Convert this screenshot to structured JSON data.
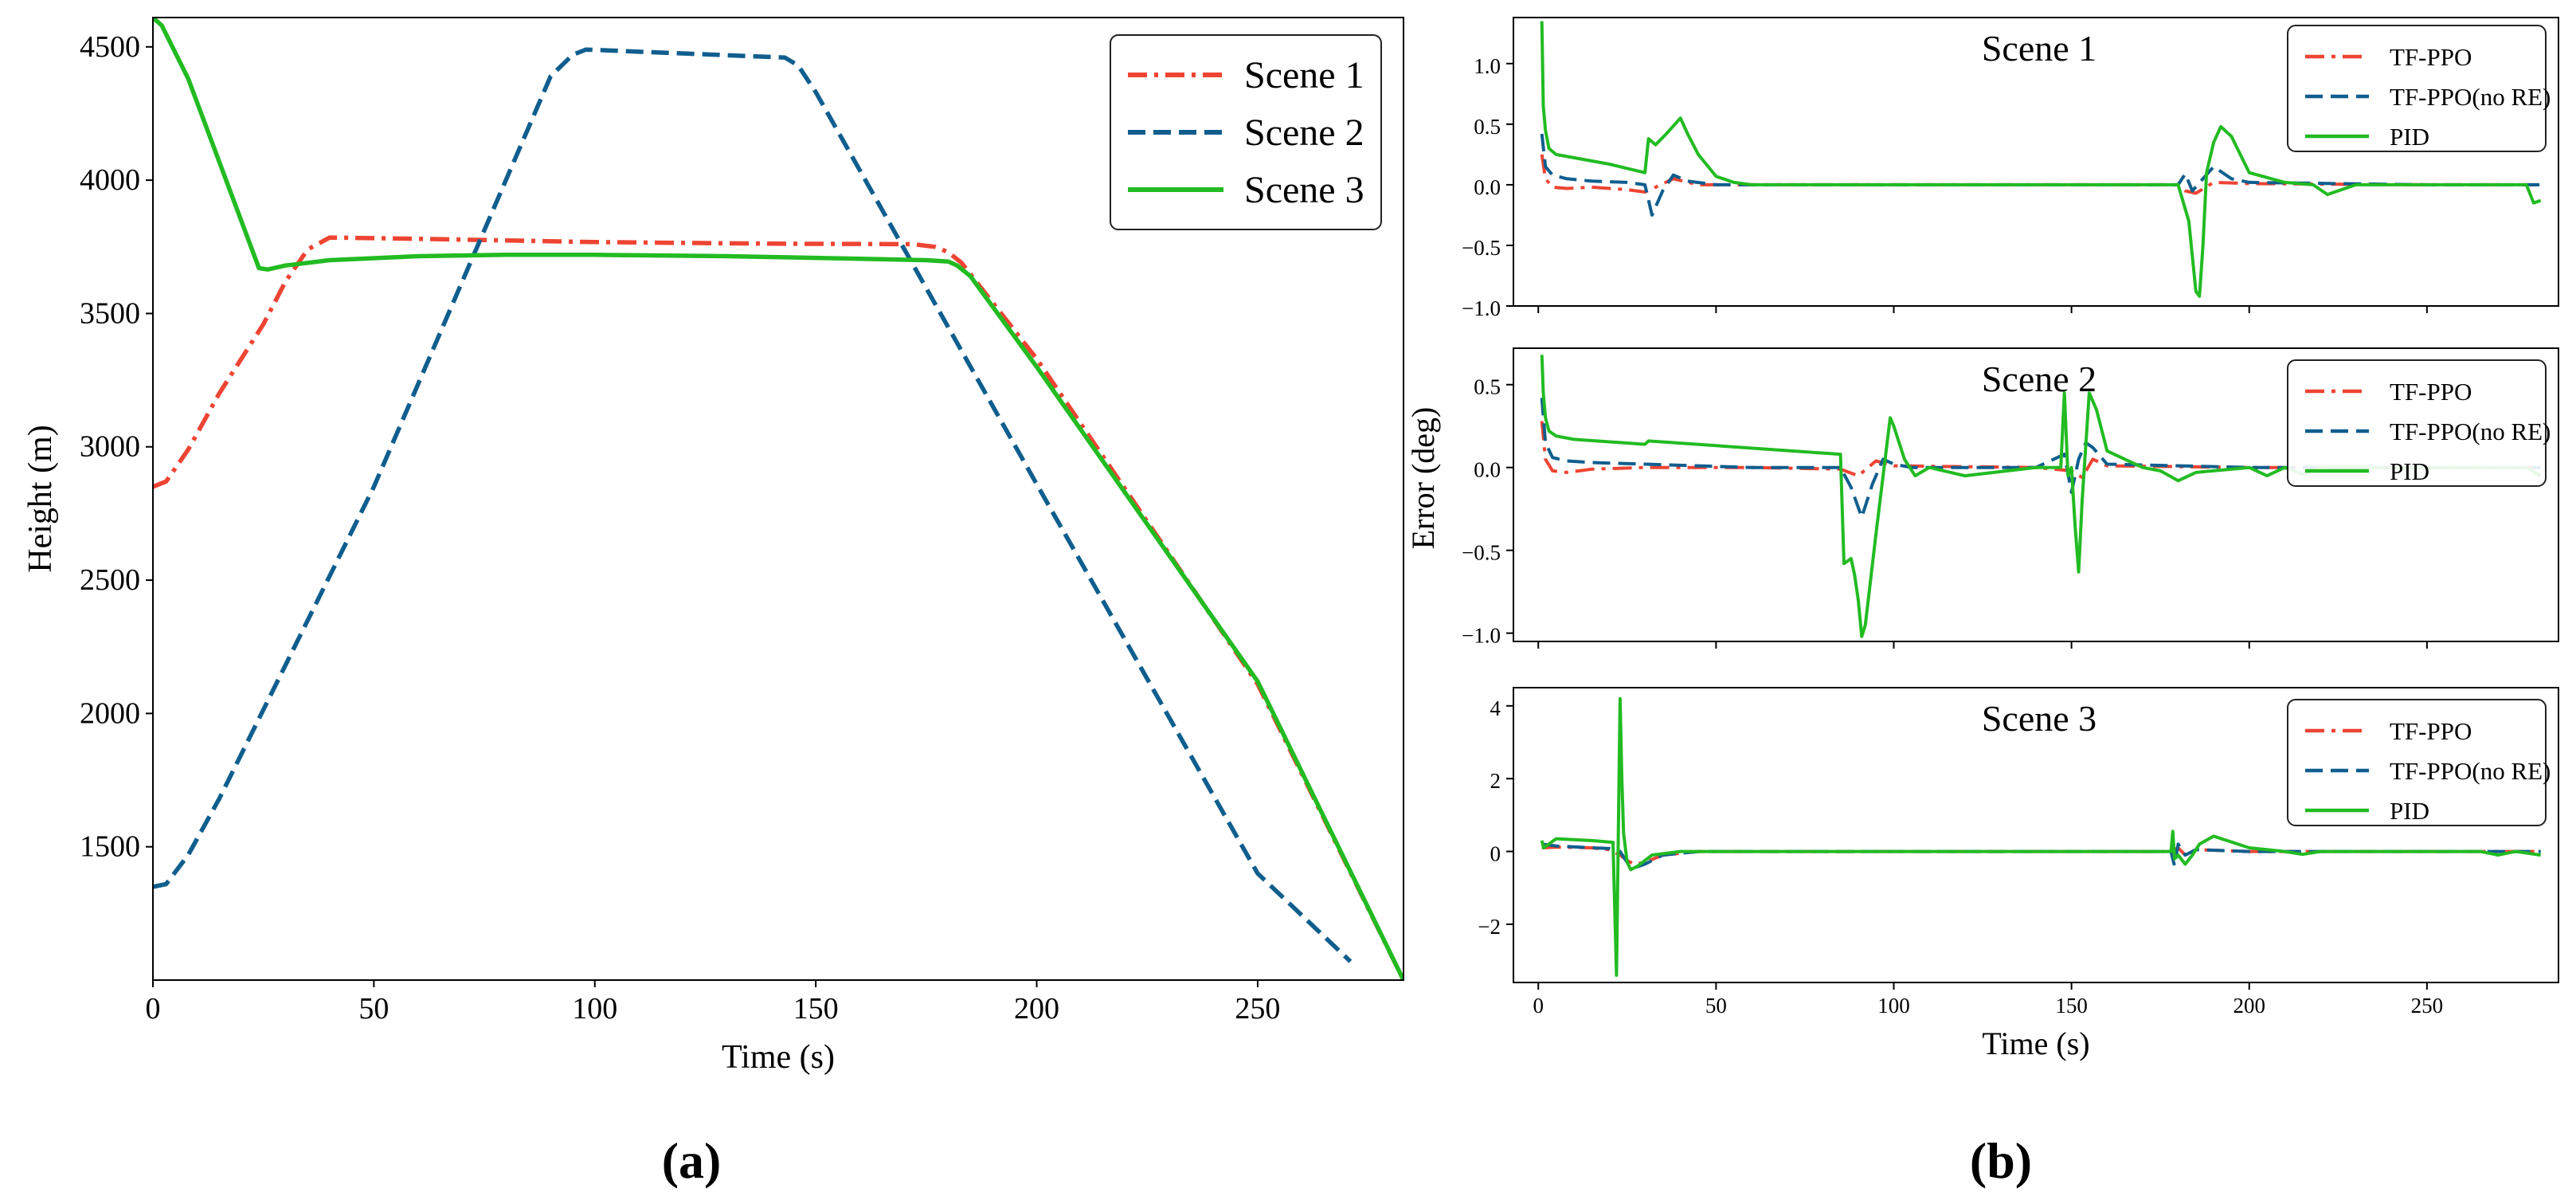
{
  "figure": {
    "panel_a_label": "(a)",
    "panel_b_label": "(b)"
  },
  "chart_data": [
    {
      "type": "line",
      "panel": "a",
      "title": "",
      "xlabel": "Time (s)",
      "ylabel": "Height (m)",
      "xlim": [
        0,
        283
      ],
      "ylim": [
        1000,
        4610
      ],
      "xticks": [
        0,
        50,
        100,
        150,
        200,
        250
      ],
      "yticks": [
        1500,
        2000,
        2500,
        3000,
        3500,
        4000,
        4500
      ],
      "grid": false,
      "legend_position": "top-right",
      "series": [
        {
          "name": "Scene 1",
          "color": "#ee4433",
          "dash": "dashdot",
          "x": [
            0,
            3,
            8,
            15,
            25,
            30,
            35,
            40,
            60,
            100,
            140,
            172,
            177,
            180,
            183,
            200,
            250,
            283
          ],
          "y": [
            2850,
            2870,
            2990,
            3200,
            3460,
            3620,
            3740,
            3785,
            3780,
            3768,
            3762,
            3760,
            3750,
            3730,
            3690,
            3330,
            2110,
            1000
          ]
        },
        {
          "name": "Scene 2",
          "color": "#105e8e",
          "dash": "dashed",
          "x": [
            0,
            3,
            8,
            15,
            50,
            90,
            95,
            98,
            143,
            146,
            150,
            200,
            250,
            271
          ],
          "y": [
            1350,
            1360,
            1470,
            1680,
            2850,
            4390,
            4470,
            4490,
            4460,
            4430,
            4330,
            2860,
            1400,
            1070
          ]
        },
        {
          "name": "Scene 3",
          "color": "#22bb22",
          "dash": "solid",
          "x": [
            0,
            2,
            8,
            24,
            26,
            30,
            40,
            60,
            80,
            100,
            130,
            160,
            175,
            180,
            182,
            185,
            200,
            250,
            283
          ],
          "y": [
            4610,
            4580,
            4380,
            3670,
            3665,
            3680,
            3700,
            3715,
            3720,
            3720,
            3715,
            3705,
            3700,
            3695,
            3680,
            3640,
            3300,
            2120,
            1000
          ]
        }
      ]
    },
    {
      "type": "line",
      "panel": "b1",
      "title": "Scene 1",
      "xlabel": "",
      "ylabel": "",
      "xlim": [
        -7,
        287
      ],
      "ylim": [
        -1.0,
        1.38
      ],
      "xticks": [
        0,
        50,
        100,
        150,
        200,
        250
      ],
      "yticks": [
        -1.0,
        -0.5,
        0.0,
        0.5,
        1.0
      ],
      "ytick_labels": [
        "−1.0",
        "−0.5",
        "0.0",
        "0.5",
        "1.0"
      ],
      "xtick_labels_visible": false,
      "legend_position": "top-right",
      "series": [
        {
          "name": "TF-PPO",
          "color": "#ee4433",
          "dash": "dashdot",
          "x": [
            1,
            2,
            4,
            8,
            15,
            25,
            30,
            33,
            38,
            45,
            60,
            100,
            150,
            180,
            182,
            185,
            190,
            200,
            250,
            282
          ],
          "y": [
            0.25,
            0.05,
            -0.02,
            -0.03,
            -0.02,
            -0.04,
            -0.06,
            -0.02,
            0.05,
            0.0,
            0.0,
            0.0,
            0.0,
            0.0,
            -0.05,
            -0.07,
            0.02,
            0.01,
            0.0,
            0.0
          ]
        },
        {
          "name": "TF-PPO(no RE)",
          "color": "#105e8e",
          "dash": "dashed",
          "x": [
            1,
            2,
            4,
            8,
            15,
            25,
            30,
            32,
            35,
            38,
            42,
            50,
            100,
            180,
            182,
            184,
            187,
            190,
            195,
            200,
            250,
            282
          ],
          "y": [
            0.42,
            0.15,
            0.08,
            0.05,
            0.03,
            0.02,
            0.0,
            -0.25,
            -0.05,
            0.08,
            0.03,
            0.0,
            0.0,
            0.0,
            0.09,
            -0.05,
            0.05,
            0.15,
            0.05,
            0.02,
            0.0,
            0.0
          ]
        },
        {
          "name": "PID",
          "color": "#22bb22",
          "dash": "solid",
          "x": [
            1,
            1.4,
            2,
            3,
            5,
            20,
            30,
            31,
            33,
            36,
            40,
            42,
            45,
            50,
            55,
            60,
            100,
            180,
            183,
            185,
            186,
            187,
            188,
            190,
            192,
            195,
            200,
            210,
            218,
            222,
            230,
            250,
            278,
            280,
            282
          ],
          "y": [
            1.35,
            0.65,
            0.45,
            0.3,
            0.25,
            0.17,
            0.1,
            0.38,
            0.33,
            0.42,
            0.55,
            0.42,
            0.25,
            0.07,
            0.02,
            0.0,
            0.0,
            0.0,
            -0.3,
            -0.88,
            -0.92,
            -0.5,
            0.1,
            0.35,
            0.48,
            0.4,
            0.1,
            0.02,
            0.0,
            -0.08,
            0.0,
            0.0,
            0.0,
            -0.15,
            -0.13
          ]
        }
      ]
    },
    {
      "type": "line",
      "panel": "b2",
      "title": "Scene 2",
      "xlabel": "",
      "ylabel": "Error (deg)",
      "xlim": [
        -7,
        287
      ],
      "ylim": [
        -1.05,
        0.72
      ],
      "xticks": [
        0,
        50,
        100,
        150,
        200,
        250
      ],
      "yticks": [
        -1.0,
        -0.5,
        0.0,
        0.5
      ],
      "ytick_labels": [
        "−1.0",
        "−0.5",
        "0.0",
        "0.5"
      ],
      "xtick_labels_visible": false,
      "legend_position": "top-right",
      "series": [
        {
          "name": "TF-PPO",
          "color": "#ee4433",
          "dash": "dashdot",
          "x": [
            1,
            2,
            4,
            8,
            15,
            30,
            60,
            85,
            90,
            95,
            100,
            140,
            150,
            153,
            156,
            160,
            200,
            250,
            282
          ],
          "y": [
            0.28,
            0.05,
            -0.02,
            -0.03,
            -0.01,
            0.0,
            0.0,
            -0.01,
            -0.05,
            0.04,
            0.01,
            0.0,
            -0.02,
            -0.06,
            0.05,
            0.01,
            0.0,
            0.0,
            0.0
          ]
        },
        {
          "name": "TF-PPO(no RE)",
          "color": "#105e8e",
          "dash": "dashed",
          "x": [
            1,
            2,
            4,
            8,
            15,
            30,
            60,
            85,
            88,
            91,
            94,
            97,
            100,
            105,
            140,
            148,
            150,
            152,
            154,
            156,
            160,
            200,
            250,
            282
          ],
          "y": [
            0.42,
            0.15,
            0.06,
            0.04,
            0.03,
            0.02,
            0.0,
            0.0,
            -0.12,
            -0.3,
            -0.1,
            0.05,
            0.02,
            0.0,
            0.0,
            0.08,
            -0.15,
            0.05,
            0.15,
            0.12,
            0.02,
            0.0,
            0.0,
            0.0
          ]
        },
        {
          "name": "PID",
          "color": "#22bb22",
          "dash": "solid",
          "x": [
            1,
            1.4,
            2,
            3,
            5,
            10,
            30,
            31,
            85,
            86,
            88,
            89,
            90,
            91,
            92,
            95,
            97,
            99,
            100,
            103,
            106,
            110,
            120,
            140,
            147,
            148,
            149,
            150,
            151,
            152,
            153,
            155,
            157,
            160,
            170,
            175,
            180,
            185,
            200,
            205,
            210,
            215,
            220,
            250,
            278,
            282
          ],
          "y": [
            0.68,
            0.45,
            0.3,
            0.22,
            0.19,
            0.17,
            0.14,
            0.16,
            0.08,
            -0.58,
            -0.55,
            -0.65,
            -0.8,
            -1.02,
            -0.95,
            -0.4,
            -0.05,
            0.3,
            0.25,
            0.05,
            -0.05,
            0.0,
            -0.05,
            0.0,
            0.0,
            0.45,
            -0.05,
            0.0,
            -0.35,
            -0.63,
            -0.2,
            0.45,
            0.35,
            0.1,
            0.0,
            -0.02,
            -0.08,
            -0.03,
            0.0,
            -0.05,
            0.0,
            -0.04,
            0.0,
            0.0,
            0.0,
            -0.05
          ]
        }
      ]
    },
    {
      "type": "line",
      "panel": "b3",
      "title": "Scene 3",
      "xlabel": "Time (s)",
      "ylabel": "",
      "xlim": [
        -7,
        287
      ],
      "ylim": [
        -3.6,
        4.5
      ],
      "xticks": [
        0,
        50,
        100,
        150,
        200,
        250
      ],
      "yticks": [
        -2,
        0,
        2,
        4
      ],
      "ytick_labels": [
        "−2",
        "0",
        "2",
        "4"
      ],
      "xtick_labels_visible": true,
      "legend_position": "top-right",
      "series": [
        {
          "name": "TF-PPO",
          "color": "#ee4433",
          "dash": "dashdot",
          "x": [
            1,
            5,
            15,
            20,
            23,
            25,
            27,
            30,
            35,
            45,
            60,
            100,
            178,
            180,
            182,
            185,
            200,
            250,
            282
          ],
          "y": [
            0.1,
            0.12,
            0.1,
            0.05,
            -0.1,
            -0.25,
            -0.35,
            -0.3,
            -0.1,
            0.0,
            0.0,
            0.0,
            0.0,
            0.1,
            -0.1,
            0.05,
            0.0,
            0.0,
            0.0
          ]
        },
        {
          "name": "TF-PPO(no RE)",
          "color": "#105e8e",
          "dash": "dashed",
          "x": [
            1,
            5,
            15,
            20,
            23,
            25,
            27,
            30,
            35,
            45,
            60,
            100,
            178,
            179,
            180,
            182,
            185,
            200,
            250,
            282
          ],
          "y": [
            0.2,
            0.15,
            0.1,
            0.08,
            0.0,
            -0.3,
            -0.45,
            -0.35,
            -0.1,
            0.0,
            0.0,
            0.0,
            0.0,
            -0.4,
            0.2,
            -0.1,
            0.05,
            0.0,
            0.0,
            0.0
          ]
        },
        {
          "name": "PID",
          "color": "#22bb22",
          "dash": "solid",
          "x": [
            1,
            1.5,
            5,
            15,
            21,
            22,
            23,
            23.5,
            24,
            25,
            26,
            28,
            32,
            40,
            50,
            60,
            100,
            178,
            178.5,
            179,
            180,
            182,
            184,
            186,
            190,
            200,
            210,
            215,
            220,
            250,
            265,
            270,
            275,
            282
          ],
          "y": [
            0.3,
            0.1,
            0.35,
            0.3,
            0.25,
            -3.4,
            4.2,
            2.0,
            0.5,
            -0.3,
            -0.5,
            -0.4,
            -0.1,
            0.0,
            0.0,
            0.0,
            0.0,
            0.0,
            0.55,
            -0.2,
            -0.1,
            -0.35,
            -0.1,
            0.2,
            0.42,
            0.1,
            0.0,
            -0.08,
            0.0,
            0.0,
            0.0,
            -0.1,
            0.0,
            -0.1
          ]
        }
      ]
    }
  ]
}
